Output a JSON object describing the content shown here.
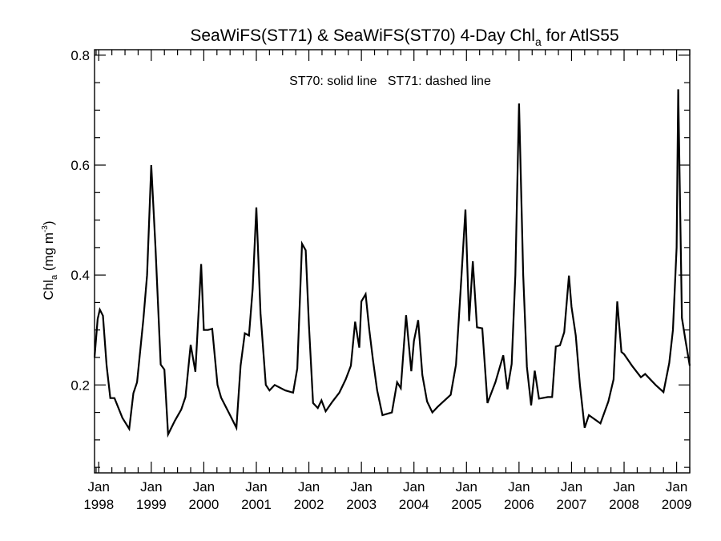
{
  "chart_data": {
    "type": "line",
    "title": "SeaWiFS(ST71) & SeaWiFS(ST70) 4-Day Chl",
    "title_subscript": "a",
    "title_suffix": " for AtlS55",
    "annotation": "ST70: solid line   ST71: dashed line",
    "ylabel_main": "Chl",
    "ylabel_sub": "a",
    "ylabel_unit": " (mg m",
    "ylabel_sup": "-3",
    "ylabel_close": ")",
    "xlim": [
      1997.92,
      2009.25
    ],
    "ylim": [
      0.04,
      0.81
    ],
    "y_ticks": [
      {
        "value": 0.2,
        "label": "0.2"
      },
      {
        "value": 0.4,
        "label": "0.4"
      },
      {
        "value": 0.6,
        "label": "0.6"
      },
      {
        "value": 0.8,
        "label": "0.8"
      }
    ],
    "x_ticks": [
      {
        "value": 1998.0,
        "month": "Jan",
        "year": "1998"
      },
      {
        "value": 1999.0,
        "month": "Jan",
        "year": "1999"
      },
      {
        "value": 2000.0,
        "month": "Jan",
        "year": "2000"
      },
      {
        "value": 2001.0,
        "month": "Jan",
        "year": "2001"
      },
      {
        "value": 2002.0,
        "month": "Jan",
        "year": "2002"
      },
      {
        "value": 2003.0,
        "month": "Jan",
        "year": "2003"
      },
      {
        "value": 2004.0,
        "month": "Jan",
        "year": "2004"
      },
      {
        "value": 2005.0,
        "month": "Jan",
        "year": "2005"
      },
      {
        "value": 2006.0,
        "month": "Jan",
        "year": "2006"
      },
      {
        "value": 2007.0,
        "month": "Jan",
        "year": "2007"
      },
      {
        "value": 2008.0,
        "month": "Jan",
        "year": "2008"
      },
      {
        "value": 2009.0,
        "month": "Jan",
        "year": "2009"
      }
    ],
    "series": [
      {
        "style": "solid",
        "color": "#000000",
        "points": [
          [
            1997.92,
            0.25
          ],
          [
            1997.98,
            0.32
          ],
          [
            1998.02,
            0.337
          ],
          [
            1998.08,
            0.326
          ],
          [
            1998.15,
            0.235
          ],
          [
            1998.22,
            0.176
          ],
          [
            1998.3,
            0.176
          ],
          [
            1998.45,
            0.14
          ],
          [
            1998.58,
            0.12
          ],
          [
            1998.66,
            0.185
          ],
          [
            1998.73,
            0.205
          ],
          [
            1998.85,
            0.32
          ],
          [
            1998.92,
            0.4
          ],
          [
            1999.0,
            0.6
          ],
          [
            1999.08,
            0.45
          ],
          [
            1999.18,
            0.237
          ],
          [
            1999.25,
            0.228
          ],
          [
            1999.32,
            0.11
          ],
          [
            1999.45,
            0.135
          ],
          [
            1999.57,
            0.155
          ],
          [
            1999.65,
            0.178
          ],
          [
            1999.75,
            0.273
          ],
          [
            1999.84,
            0.224
          ],
          [
            1999.95,
            0.42
          ],
          [
            2000.0,
            0.3
          ],
          [
            2000.08,
            0.3
          ],
          [
            2000.16,
            0.302
          ],
          [
            2000.26,
            0.2
          ],
          [
            2000.33,
            0.177
          ],
          [
            2000.5,
            0.145
          ],
          [
            2000.62,
            0.122
          ],
          [
            2000.7,
            0.235
          ],
          [
            2000.78,
            0.294
          ],
          [
            2000.86,
            0.29
          ],
          [
            2000.93,
            0.375
          ],
          [
            2001.0,
            0.523
          ],
          [
            2001.08,
            0.33
          ],
          [
            2001.18,
            0.2
          ],
          [
            2001.25,
            0.19
          ],
          [
            2001.35,
            0.2
          ],
          [
            2001.55,
            0.19
          ],
          [
            2001.7,
            0.186
          ],
          [
            2001.78,
            0.23
          ],
          [
            2001.87,
            0.457
          ],
          [
            2001.94,
            0.445
          ],
          [
            2002.0,
            0.31
          ],
          [
            2002.08,
            0.167
          ],
          [
            2002.17,
            0.158
          ],
          [
            2002.24,
            0.172
          ],
          [
            2002.32,
            0.152
          ],
          [
            2002.45,
            0.17
          ],
          [
            2002.58,
            0.186
          ],
          [
            2002.7,
            0.21
          ],
          [
            2002.8,
            0.235
          ],
          [
            2002.88,
            0.315
          ],
          [
            2002.96,
            0.268
          ],
          [
            2003.0,
            0.352
          ],
          [
            2003.08,
            0.365
          ],
          [
            2003.15,
            0.3
          ],
          [
            2003.22,
            0.245
          ],
          [
            2003.3,
            0.19
          ],
          [
            2003.4,
            0.145
          ],
          [
            2003.58,
            0.15
          ],
          [
            2003.68,
            0.205
          ],
          [
            2003.75,
            0.194
          ],
          [
            2003.85,
            0.327
          ],
          [
            2003.95,
            0.225
          ],
          [
            2004.0,
            0.28
          ],
          [
            2004.08,
            0.318
          ],
          [
            2004.16,
            0.218
          ],
          [
            2004.25,
            0.17
          ],
          [
            2004.35,
            0.15
          ],
          [
            2004.45,
            0.16
          ],
          [
            2004.7,
            0.182
          ],
          [
            2004.8,
            0.237
          ],
          [
            2004.9,
            0.39
          ],
          [
            2004.98,
            0.519
          ],
          [
            2005.05,
            0.316
          ],
          [
            2005.12,
            0.425
          ],
          [
            2005.2,
            0.305
          ],
          [
            2005.3,
            0.303
          ],
          [
            2005.4,
            0.167
          ],
          [
            2005.55,
            0.205
          ],
          [
            2005.7,
            0.254
          ],
          [
            2005.78,
            0.192
          ],
          [
            2005.86,
            0.238
          ],
          [
            2005.93,
            0.4
          ],
          [
            2006.0,
            0.712
          ],
          [
            2006.08,
            0.4
          ],
          [
            2006.15,
            0.233
          ],
          [
            2006.23,
            0.163
          ],
          [
            2006.3,
            0.226
          ],
          [
            2006.38,
            0.175
          ],
          [
            2006.55,
            0.178
          ],
          [
            2006.63,
            0.178
          ],
          [
            2006.7,
            0.27
          ],
          [
            2006.78,
            0.272
          ],
          [
            2006.86,
            0.296
          ],
          [
            2006.95,
            0.399
          ],
          [
            2007.0,
            0.342
          ],
          [
            2007.08,
            0.29
          ],
          [
            2007.16,
            0.2
          ],
          [
            2007.25,
            0.122
          ],
          [
            2007.33,
            0.145
          ],
          [
            2007.55,
            0.13
          ],
          [
            2007.7,
            0.17
          ],
          [
            2007.8,
            0.21
          ],
          [
            2007.87,
            0.352
          ],
          [
            2007.95,
            0.26
          ],
          [
            2008.0,
            0.256
          ],
          [
            2008.15,
            0.235
          ],
          [
            2008.32,
            0.214
          ],
          [
            2008.4,
            0.22
          ],
          [
            2008.6,
            0.2
          ],
          [
            2008.75,
            0.187
          ],
          [
            2008.86,
            0.24
          ],
          [
            2008.93,
            0.3
          ],
          [
            2009.0,
            0.45
          ],
          [
            2009.03,
            0.738
          ],
          [
            2009.1,
            0.322
          ],
          [
            2009.17,
            0.28
          ],
          [
            2009.25,
            0.235
          ]
        ]
      }
    ]
  }
}
